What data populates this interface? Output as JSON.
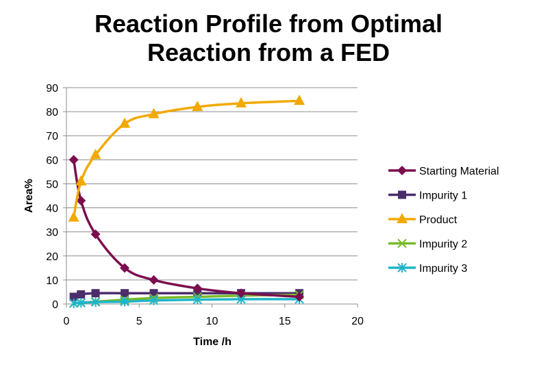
{
  "chart_data": {
    "type": "line",
    "title_lines": [
      "Reaction Profile from Optimal",
      "Reaction from a FED"
    ],
    "xlabel": "Time /h",
    "ylabel": "Area%",
    "xlim": [
      0,
      20
    ],
    "ylim": [
      0,
      90
    ],
    "x_ticks": [
      0,
      5,
      10,
      15,
      20
    ],
    "y_ticks": [
      0,
      10,
      20,
      30,
      40,
      50,
      60,
      70,
      80,
      90
    ],
    "grid": "horizontal",
    "legend_position": "right",
    "series": [
      {
        "name": "Starting Material",
        "color": "#7B0E4F",
        "marker": "diamond",
        "x": [
          0.5,
          1,
          2,
          4,
          6,
          9,
          12,
          16
        ],
        "y": [
          60,
          43,
          29,
          15,
          10,
          6.5,
          4.5,
          3
        ]
      },
      {
        "name": "Impurity 1",
        "color": "#4B2D6B",
        "marker": "square",
        "x": [
          0.5,
          1,
          2,
          4,
          6,
          9,
          12,
          16
        ],
        "y": [
          3,
          4,
          4.5,
          4.5,
          4.5,
          4.5,
          4.5,
          4.5
        ]
      },
      {
        "name": "Product",
        "color": "#F2A900",
        "marker": "triangle",
        "x": [
          0.5,
          1,
          2,
          4,
          6,
          9,
          12,
          16
        ],
        "y": [
          36,
          51,
          62,
          75,
          79,
          82,
          83.5,
          84.5
        ]
      },
      {
        "name": "Impurity 2",
        "color": "#7AB929",
        "marker": "x",
        "x": [
          0.5,
          1,
          2,
          4,
          6,
          9,
          12,
          16
        ],
        "y": [
          0.3,
          0.5,
          1,
          1.8,
          2.5,
          3,
          3.5,
          3.8
        ]
      },
      {
        "name": "Impurity 3",
        "color": "#1FB5C9",
        "marker": "star",
        "x": [
          0.5,
          1,
          2,
          4,
          6,
          9,
          12,
          16
        ],
        "y": [
          0.3,
          0.5,
          0.8,
          1,
          1.5,
          1.8,
          2,
          2
        ]
      }
    ]
  }
}
